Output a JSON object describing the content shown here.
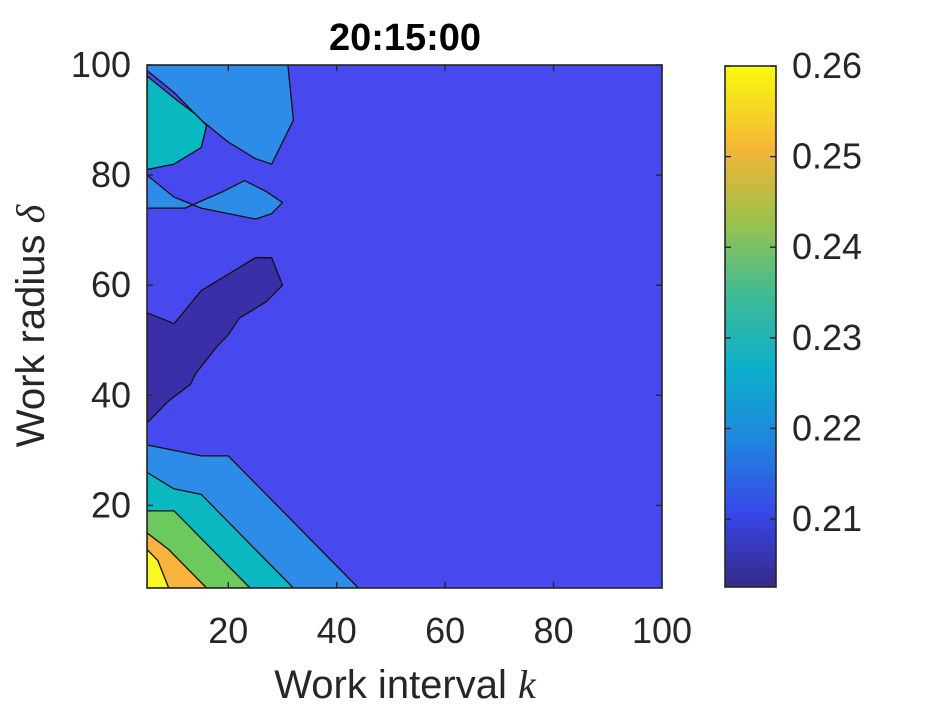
{
  "chart_data": {
    "type": "contour",
    "title": "20:15:00",
    "xlabel": "Work interval",
    "xlabel_var": "k",
    "ylabel": "Work radius",
    "ylabel_var": "δ",
    "xlim": [
      5,
      100
    ],
    "ylim": [
      5,
      100
    ],
    "xticks": [
      20,
      40,
      60,
      80,
      100
    ],
    "yticks": [
      20,
      40,
      60,
      80,
      100
    ],
    "colorbar": {
      "range": [
        0.2025,
        0.26
      ],
      "ticks": [
        0.21,
        0.22,
        0.23,
        0.24,
        0.25,
        0.26
      ],
      "tick_labels": [
        "0.21",
        "0.22",
        "0.23",
        "0.24",
        "0.25",
        "0.26"
      ],
      "colormap": "parula"
    },
    "base_level_color": "#4749EE",
    "regions": [
      {
        "level": 0.205,
        "color": "#3B2FA9",
        "points": [
          [
            5,
            55
          ],
          [
            10,
            53
          ],
          [
            15,
            59
          ],
          [
            20,
            62
          ],
          [
            25,
            65
          ],
          [
            28,
            65
          ],
          [
            30,
            60
          ],
          [
            27,
            57
          ],
          [
            22,
            54
          ],
          [
            20,
            51
          ],
          [
            18,
            49
          ],
          [
            14,
            44
          ],
          [
            13,
            42
          ],
          [
            9,
            39
          ],
          [
            5,
            35
          ]
        ]
      },
      {
        "level": 0.22,
        "color": "#2D8CE8",
        "points": [
          [
            5,
            99
          ],
          [
            10,
            95
          ],
          [
            15,
            90
          ],
          [
            20,
            86
          ],
          [
            25,
            83
          ],
          [
            28,
            82
          ],
          [
            32,
            90
          ],
          [
            31,
            100
          ],
          [
            5,
            100
          ],
          [
            5,
            80
          ],
          [
            10,
            76
          ],
          [
            15,
            74
          ],
          [
            20,
            73
          ],
          [
            25,
            72
          ],
          [
            28,
            73
          ],
          [
            30,
            75
          ],
          [
            27,
            77
          ],
          [
            23,
            79
          ],
          [
            19,
            77
          ],
          [
            12,
            74
          ],
          [
            5,
            74
          ]
        ]
      },
      {
        "level": 0.23,
        "color": "#09B8C0",
        "points": [
          [
            5,
            98
          ],
          [
            10,
            94
          ],
          [
            14,
            91
          ],
          [
            16,
            89
          ],
          [
            15,
            85
          ],
          [
            10,
            82
          ],
          [
            5,
            81
          ]
        ]
      },
      {
        "level": 0.22,
        "color": "#2D8CE8",
        "points": [
          [
            5,
            31
          ],
          [
            10,
            30
          ],
          [
            15,
            29
          ],
          [
            20,
            29
          ],
          [
            25,
            24
          ],
          [
            30,
            19
          ],
          [
            35,
            14
          ],
          [
            40,
            9
          ],
          [
            44,
            5
          ],
          [
            5,
            5
          ]
        ]
      },
      {
        "level": 0.23,
        "color": "#09B8C0",
        "points": [
          [
            5,
            26
          ],
          [
            10,
            23
          ],
          [
            15,
            22
          ],
          [
            20,
            17
          ],
          [
            25,
            12
          ],
          [
            30,
            7
          ],
          [
            32,
            5
          ],
          [
            5,
            5
          ]
        ]
      },
      {
        "level": 0.24,
        "color": "#6CC95E",
        "points": [
          [
            5,
            19
          ],
          [
            10,
            19
          ],
          [
            13,
            16
          ],
          [
            18,
            11
          ],
          [
            23,
            6
          ],
          [
            24,
            5
          ],
          [
            5,
            5
          ]
        ]
      },
      {
        "level": 0.25,
        "color": "#F8B33D",
        "points": [
          [
            5,
            15
          ],
          [
            9,
            12
          ],
          [
            12,
            9
          ],
          [
            16,
            5
          ],
          [
            5,
            5
          ]
        ]
      },
      {
        "level": 0.26,
        "color": "#F9F823",
        "points": [
          [
            5,
            12
          ],
          [
            7,
            10
          ],
          [
            9,
            5
          ],
          [
            5,
            5
          ]
        ]
      }
    ]
  }
}
